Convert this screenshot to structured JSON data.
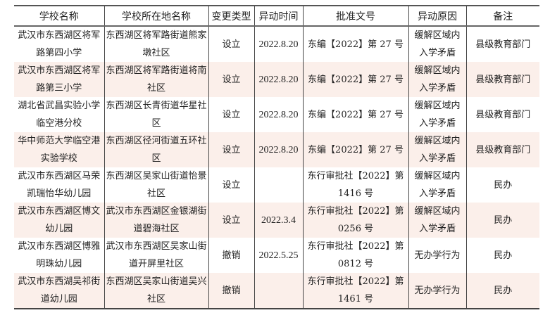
{
  "headers": [
    "学校名称",
    "学校所在地名称",
    "变更类型",
    "异动时间",
    "批准文号",
    "异动原因",
    "备注"
  ],
  "rows": [
    {
      "name": "武汉市东西湖区将军路第四小学",
      "location": "东西湖区将军路街道熊家墩社区",
      "type": "设立",
      "date": "2022.8.20",
      "approval": "东编【2022】第 27 号",
      "reason": "缓解区域内入学矛盾",
      "note": "县级教育部门"
    },
    {
      "name": "武汉市东西湖区将军路第三小学",
      "location": "东西湖区将军路街道将南社区",
      "type": "设立",
      "date": "2022.8.20",
      "approval": "东编【2022】第 27 号",
      "reason": "缓解区域内入学矛盾",
      "note": "县级教育部门"
    },
    {
      "name": "湖北省武昌实验小学临空港分校",
      "location": "东西湖区长青街道华星社区",
      "type": "设立",
      "date": "2022.8.20",
      "approval": "东编【2022】第 27 号",
      "reason": "缓解区域内入学矛盾",
      "note": "县级教育部门"
    },
    {
      "name": "华中师范大学临空港实验学校",
      "location": "东西湖区径河街道五环社区",
      "type": "设立",
      "date": "2022.8.20",
      "approval": "东编【2022】第 27 号",
      "reason": "缓解区域内入学矛盾",
      "note": "县级教育部门"
    },
    {
      "name": "武汉市东西湖区马荣凯瑞怡华幼儿园",
      "location": "东西湖区吴家山街道怡景社区",
      "type": "设立",
      "date": "",
      "approval": "东行审批社【2022】第 1416 号",
      "reason": "缓解区域内入学矛盾",
      "note": "民办"
    },
    {
      "name": "武汉市东西湖区博文幼儿园",
      "location": "武汉市东西湖区金银湖街道碧海社区",
      "type": "设立",
      "date": "2022.3.4",
      "approval": "东行审批社【2022】第 0256 号",
      "reason": "缓解区域内入学矛盾",
      "note": "民办"
    },
    {
      "name": "武汉市东西湖区博雅明珠幼儿园",
      "location": "武汉市东西湖区吴家山街道开屏里社区",
      "type": "撤销",
      "date": "2022.5.25",
      "approval": "东行审批社【2022】第 0812 号",
      "reason": "无办学行为",
      "note": "民办"
    },
    {
      "name": "武汉市东西湖吴祁街道幼儿园",
      "location": "东西湖区吴家山街道吴兴社区",
      "type": "撤销",
      "date": "",
      "approval": "东行审批社【2022】第 1461 号",
      "reason": "无办学行为",
      "note": "民办"
    }
  ]
}
